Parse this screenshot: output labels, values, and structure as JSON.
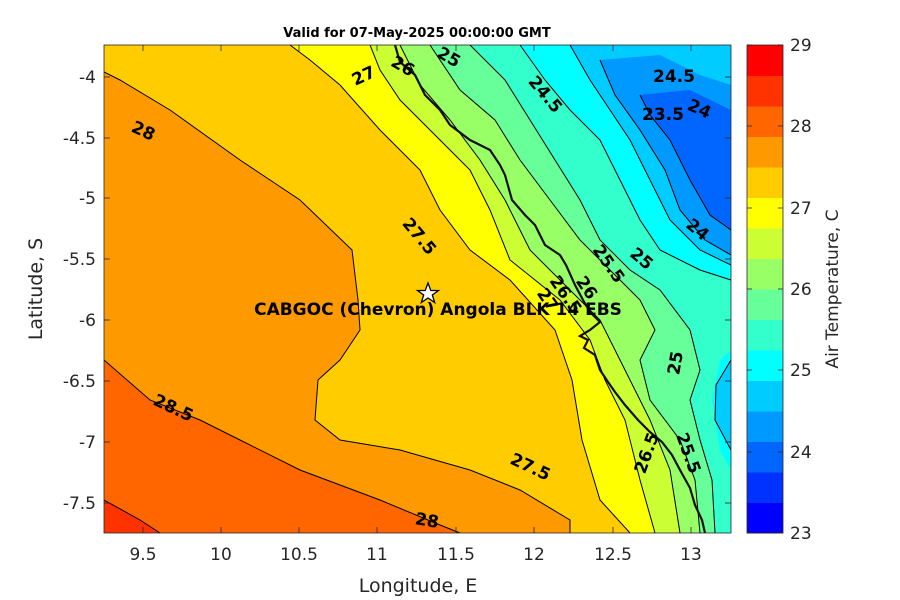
{
  "title": "Valid for 07-May-2025 00:00:00 GMT",
  "xlabel": "Longitude, E",
  "ylabel": "Latitude, S",
  "colorbar_label": "Air Temperature, C",
  "x_ticks": [
    "9.5",
    "10",
    "10.5",
    "11",
    "11.5",
    "12",
    "12.5",
    "13"
  ],
  "y_ticks": [
    "-4",
    "-4.5",
    "-5",
    "-5.5",
    "-6",
    "-6.5",
    "-7",
    "-7.5"
  ],
  "colorbar_ticks": [
    "29",
    "28",
    "27",
    "26",
    "25",
    "24",
    "23"
  ],
  "station": {
    "name": "CABGOC (Chevron)  Angola BLK 14  EBS",
    "lon": 11.33,
    "lat": -5.79,
    "marker": "star-icon"
  },
  "contour_labels": [
    "27",
    "26",
    "25",
    "24.5",
    "24.5",
    "23.5",
    "24",
    "28",
    "24",
    "27.5",
    "25",
    "25.5",
    "26",
    "26.5",
    "27",
    "25",
    "28.5",
    "27.5",
    "26.5",
    "25.5",
    "28"
  ],
  "colorbar_colors": [
    "#0000ff",
    "#0032ff",
    "#0066ff",
    "#0099ff",
    "#00ccff",
    "#00ffff",
    "#33ffcc",
    "#66ff99",
    "#99ff66",
    "#ccff33",
    "#ffff00",
    "#ffcc00",
    "#ff9900",
    "#ff6600",
    "#ff3300",
    "#ff0000"
  ],
  "chart_data": {
    "type": "heatmap",
    "title": "Valid for 07-May-2025 00:00:00 GMT",
    "xlabel": "Longitude, E",
    "ylabel": "Latitude, S",
    "xlim": [
      9.25,
      13.25
    ],
    "ylim": [
      -7.75,
      -3.75
    ],
    "color_range": [
      23,
      29
    ],
    "colorbar_label": "Air Temperature, C"
  }
}
